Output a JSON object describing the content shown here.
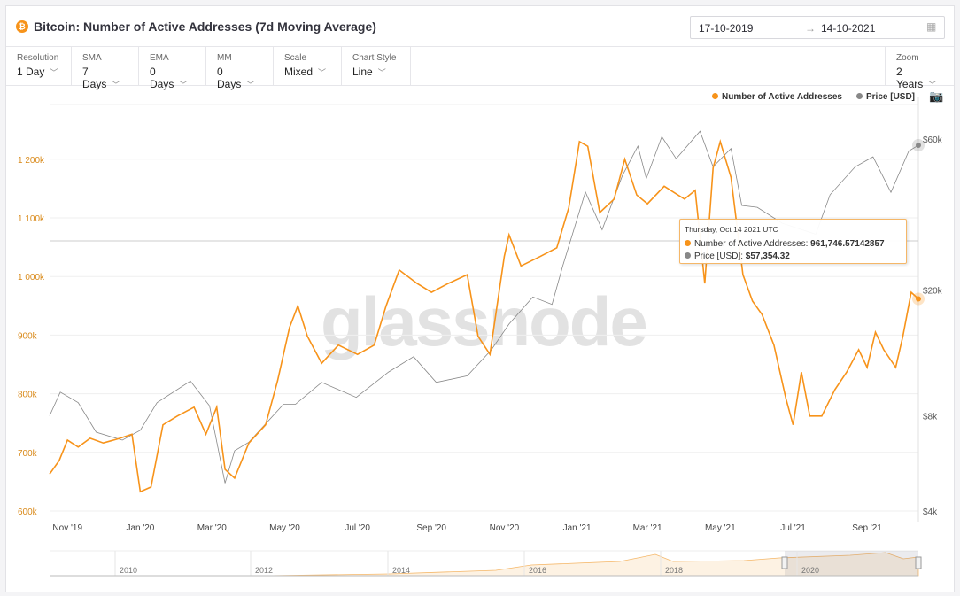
{
  "header": {
    "title": "Bitcoin: Number of Active Addresses (7d Moving Average)",
    "logo": "bitcoin-logo-icon",
    "date_from": "17-10-2019",
    "date_arrow": "→",
    "date_to": "14-10-2021",
    "calendar_icon": "calendar-icon"
  },
  "controls": [
    {
      "label": "Resolution",
      "value": "1 Day"
    },
    {
      "label": "SMA",
      "value": "7 Days"
    },
    {
      "label": "EMA",
      "value": "0 Days"
    },
    {
      "label": "MM",
      "value": "0 Days"
    },
    {
      "label": "Scale",
      "value": "Mixed"
    },
    {
      "label": "Chart Style",
      "value": "Line"
    }
  ],
  "zoom": {
    "label": "Zoom",
    "value": "2 Years"
  },
  "watermark": "glassnode",
  "tooltip": {
    "date": "Thursday, Oct 14 2021 UTC",
    "series1_label": "Number of Active Addresses: ",
    "series1_value": "961,746.57142857",
    "series2_label": "Price [USD]: ",
    "series2_value": "$57,354.32"
  },
  "colors": {
    "addresses": "#f7931a",
    "price": "#888888",
    "left_axis": "#d98a1a"
  },
  "chart_data": {
    "type": "line",
    "legend_position": "top-right",
    "grid": true,
    "xlim": [
      "2019-10-17",
      "2021-10-14"
    ],
    "x_ticks": [
      "Nov '19",
      "Jan '20",
      "Mar '20",
      "May '20",
      "Jul '20",
      "Sep '20",
      "Nov '20",
      "Jan '21",
      "Mar '21",
      "May '21",
      "Jul '21",
      "Sep '21"
    ],
    "left_axis": {
      "scale": "linear",
      "ylim": [
        600000,
        1230000
      ],
      "ticks": [
        "600k",
        "700k",
        "800k",
        "900k",
        "1 000k",
        "1 100k",
        "1 200k"
      ],
      "tick_values": [
        600000,
        700000,
        800000,
        900000,
        1000000,
        1100000,
        1200000
      ]
    },
    "right_axis": {
      "scale": "log",
      "ylim": [
        4000,
        62000
      ],
      "ticks": [
        "$4k",
        "$8k",
        "$20k",
        "$60k"
      ],
      "tick_values": [
        4000,
        8000,
        20000,
        60000
      ]
    },
    "series": [
      {
        "name": "Number of Active Addresses",
        "axis": "left",
        "points": [
          [
            "2019-10-17",
            663000
          ],
          [
            "2019-10-25",
            686000
          ],
          [
            "2019-11-01",
            721000
          ],
          [
            "2019-11-10",
            709000
          ],
          [
            "2019-11-20",
            724000
          ],
          [
            "2019-12-01",
            716000
          ],
          [
            "2019-12-15",
            724000
          ],
          [
            "2019-12-25",
            731000
          ],
          [
            "2020-01-01",
            633000
          ],
          [
            "2020-01-10",
            641000
          ],
          [
            "2020-01-20",
            747000
          ],
          [
            "2020-02-01",
            762000
          ],
          [
            "2020-02-15",
            777000
          ],
          [
            "2020-02-25",
            731000
          ],
          [
            "2020-03-05",
            777000
          ],
          [
            "2020-03-12",
            671000
          ],
          [
            "2020-03-20",
            656000
          ],
          [
            "2020-04-01",
            716000
          ],
          [
            "2020-04-15",
            747000
          ],
          [
            "2020-04-25",
            822000
          ],
          [
            "2020-05-05",
            913000
          ],
          [
            "2020-05-12",
            950000
          ],
          [
            "2020-05-20",
            898000
          ],
          [
            "2020-06-01",
            852000
          ],
          [
            "2020-06-15",
            883000
          ],
          [
            "2020-07-01",
            867000
          ],
          [
            "2020-07-15",
            883000
          ],
          [
            "2020-07-25",
            950000
          ],
          [
            "2020-08-05",
            1011000
          ],
          [
            "2020-08-20",
            988000
          ],
          [
            "2020-09-01",
            973000
          ],
          [
            "2020-09-15",
            988000
          ],
          [
            "2020-10-01",
            1003000
          ],
          [
            "2020-10-10",
            898000
          ],
          [
            "2020-10-20",
            867000
          ],
          [
            "2020-11-01",
            1034000
          ],
          [
            "2020-11-05",
            1071000
          ],
          [
            "2020-11-15",
            1018000
          ],
          [
            "2020-12-01",
            1034000
          ],
          [
            "2020-12-15",
            1049000
          ],
          [
            "2020-12-25",
            1117000
          ],
          [
            "2021-01-03",
            1230000
          ],
          [
            "2021-01-10",
            1222000
          ],
          [
            "2021-01-20",
            1109000
          ],
          [
            "2021-02-01",
            1132000
          ],
          [
            "2021-02-10",
            1200000
          ],
          [
            "2021-02-20",
            1139000
          ],
          [
            "2021-03-01",
            1124000
          ],
          [
            "2021-03-15",
            1154000
          ],
          [
            "2021-04-01",
            1132000
          ],
          [
            "2021-04-10",
            1147000
          ],
          [
            "2021-04-18",
            988000
          ],
          [
            "2021-04-25",
            1185000
          ],
          [
            "2021-05-01",
            1230000
          ],
          [
            "2021-05-10",
            1169000
          ],
          [
            "2021-05-20",
            1003000
          ],
          [
            "2021-05-28",
            958000
          ],
          [
            "2021-06-05",
            935000
          ],
          [
            "2021-06-15",
            883000
          ],
          [
            "2021-06-25",
            792000
          ],
          [
            "2021-07-01",
            747000
          ],
          [
            "2021-07-08",
            837000
          ],
          [
            "2021-07-15",
            762000
          ],
          [
            "2021-07-25",
            762000
          ],
          [
            "2021-08-05",
            807000
          ],
          [
            "2021-08-15",
            837000
          ],
          [
            "2021-08-25",
            875000
          ],
          [
            "2021-09-01",
            845000
          ],
          [
            "2021-09-08",
            905000
          ],
          [
            "2021-09-15",
            875000
          ],
          [
            "2021-09-25",
            845000
          ],
          [
            "2021-10-01",
            898000
          ],
          [
            "2021-10-08",
            973000
          ],
          [
            "2021-10-14",
            961747
          ]
        ]
      },
      {
        "name": "Price [USD]",
        "axis": "right",
        "points": [
          [
            "2019-10-17",
            8000
          ],
          [
            "2019-10-26",
            9500
          ],
          [
            "2019-11-10",
            8800
          ],
          [
            "2019-11-25",
            7100
          ],
          [
            "2019-12-17",
            6700
          ],
          [
            "2020-01-01",
            7200
          ],
          [
            "2020-01-15",
            8800
          ],
          [
            "2020-02-12",
            10300
          ],
          [
            "2020-02-28",
            8600
          ],
          [
            "2020-03-12",
            4900
          ],
          [
            "2020-03-20",
            6200
          ],
          [
            "2020-04-01",
            6600
          ],
          [
            "2020-04-30",
            8700
          ],
          [
            "2020-05-10",
            8700
          ],
          [
            "2020-06-01",
            10200
          ],
          [
            "2020-06-30",
            9150
          ],
          [
            "2020-07-27",
            11000
          ],
          [
            "2020-08-17",
            12300
          ],
          [
            "2020-09-05",
            10200
          ],
          [
            "2020-10-01",
            10700
          ],
          [
            "2020-10-21",
            12900
          ],
          [
            "2020-11-05",
            15600
          ],
          [
            "2020-11-25",
            19000
          ],
          [
            "2020-12-11",
            18000
          ],
          [
            "2020-12-20",
            23800
          ],
          [
            "2021-01-08",
            40800
          ],
          [
            "2021-01-22",
            31000
          ],
          [
            "2021-02-08",
            46000
          ],
          [
            "2021-02-21",
            57000
          ],
          [
            "2021-02-28",
            45000
          ],
          [
            "2021-03-13",
            61000
          ],
          [
            "2021-03-25",
            52000
          ],
          [
            "2021-04-14",
            63500
          ],
          [
            "2021-04-25",
            49000
          ],
          [
            "2021-05-10",
            56000
          ],
          [
            "2021-05-19",
            37000
          ],
          [
            "2021-06-01",
            36500
          ],
          [
            "2021-06-22",
            32500
          ],
          [
            "2021-07-20",
            30000
          ],
          [
            "2021-08-01",
            40000
          ],
          [
            "2021-08-22",
            49000
          ],
          [
            "2021-09-06",
            52700
          ],
          [
            "2021-09-21",
            40700
          ],
          [
            "2021-10-06",
            55000
          ],
          [
            "2021-10-14",
            57354
          ]
        ]
      }
    ],
    "navigator": {
      "ticks": [
        "2010",
        "2012",
        "2014",
        "2016",
        "2018",
        "2020"
      ]
    }
  }
}
